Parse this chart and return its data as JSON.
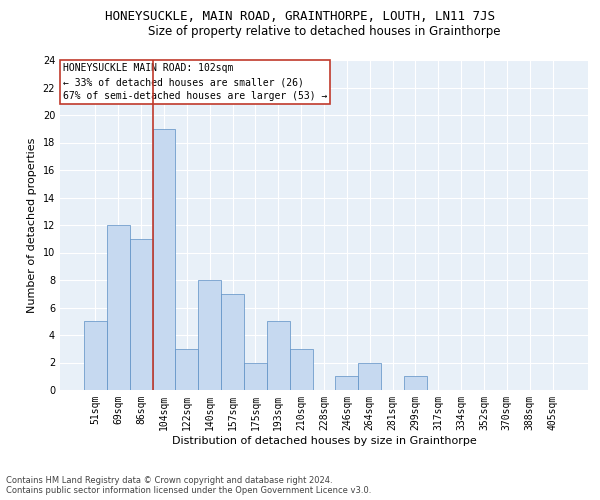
{
  "title": "HONEYSUCKLE, MAIN ROAD, GRAINTHORPE, LOUTH, LN11 7JS",
  "subtitle": "Size of property relative to detached houses in Grainthorpe",
  "xlabel": "Distribution of detached houses by size in Grainthorpe",
  "ylabel": "Number of detached properties",
  "bar_color": "#c6d9f0",
  "bar_edge_color": "#5b8ec4",
  "background_color": "#e8f0f8",
  "grid_color": "#ffffff",
  "categories": [
    "51sqm",
    "69sqm",
    "86sqm",
    "104sqm",
    "122sqm",
    "140sqm",
    "157sqm",
    "175sqm",
    "193sqm",
    "210sqm",
    "228sqm",
    "246sqm",
    "264sqm",
    "281sqm",
    "299sqm",
    "317sqm",
    "334sqm",
    "352sqm",
    "370sqm",
    "388sqm",
    "405sqm"
  ],
  "values": [
    5,
    12,
    11,
    19,
    3,
    8,
    7,
    2,
    5,
    3,
    0,
    1,
    2,
    0,
    1,
    0,
    0,
    0,
    0,
    0,
    0
  ],
  "ylim": [
    0,
    24
  ],
  "yticks": [
    0,
    2,
    4,
    6,
    8,
    10,
    12,
    14,
    16,
    18,
    20,
    22,
    24
  ],
  "annotation_line1": "HONEYSUCKLE MAIN ROAD: 102sqm",
  "annotation_line2": "← 33% of detached houses are smaller (26)",
  "annotation_line3": "67% of semi-detached houses are larger (53) →",
  "vline_x_index": 3,
  "vline_color": "#c0392b",
  "box_edge_color": "#c0392b",
  "footer_line1": "Contains HM Land Registry data © Crown copyright and database right 2024.",
  "footer_line2": "Contains public sector information licensed under the Open Government Licence v3.0.",
  "title_fontsize": 9,
  "subtitle_fontsize": 8.5,
  "xlabel_fontsize": 8,
  "ylabel_fontsize": 8,
  "tick_fontsize": 7,
  "annotation_fontsize": 7,
  "footer_fontsize": 6
}
